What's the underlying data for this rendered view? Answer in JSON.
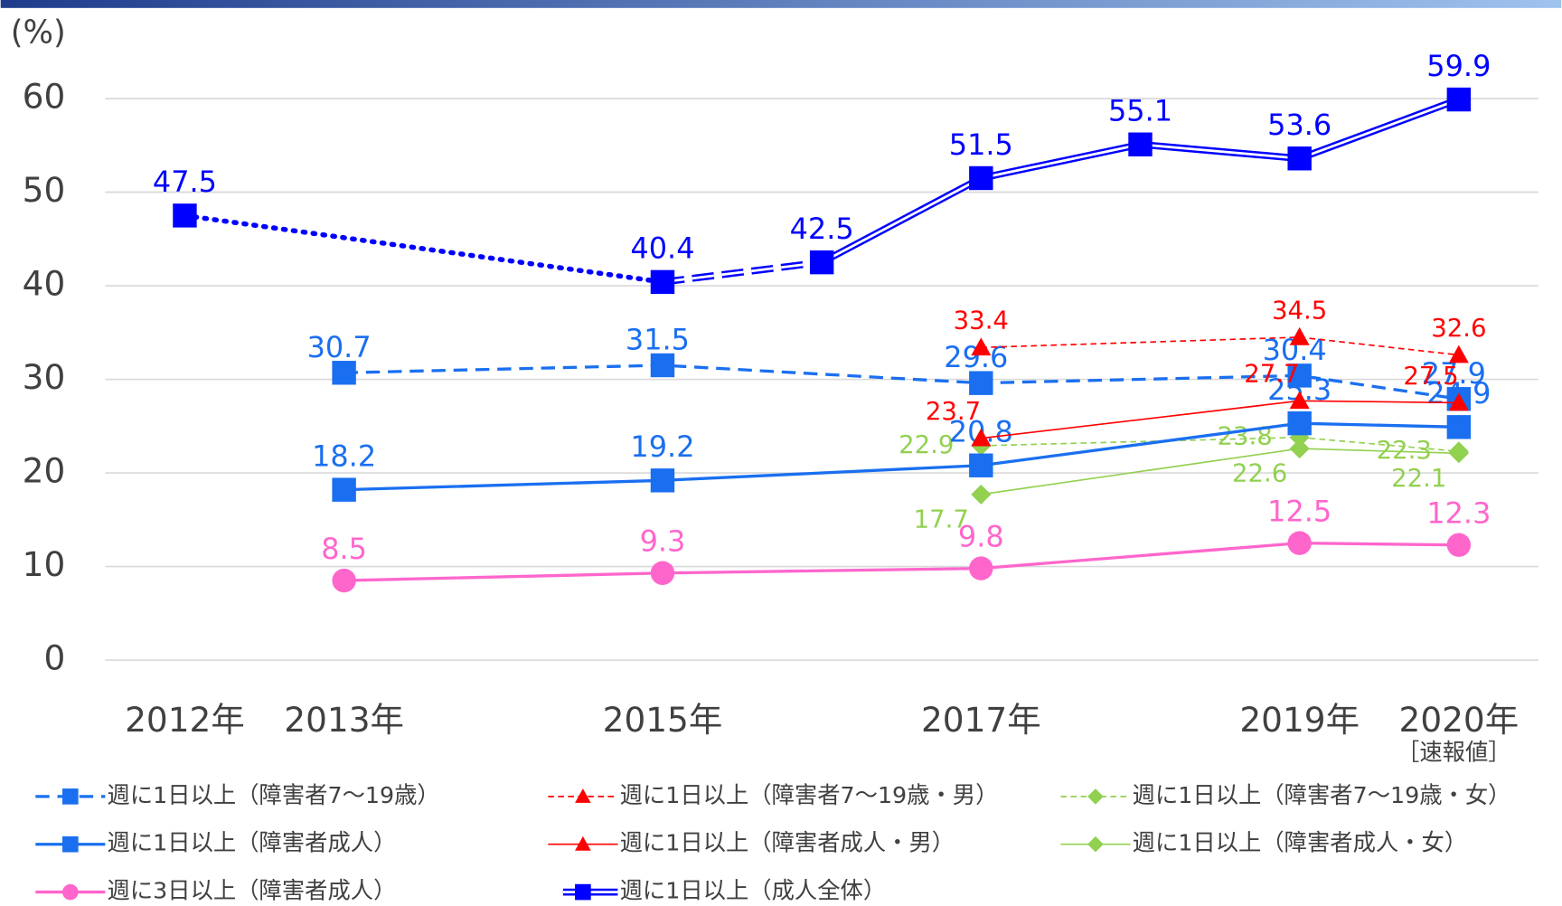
{
  "chart_data": {
    "type": "line",
    "ylabel": "(%)",
    "annotation": "［速報値］",
    "xlim": [
      2011.5,
      2020.5
    ],
    "xticks": [
      {
        "value": 2012,
        "label": "2012年"
      },
      {
        "value": 2013,
        "label": "2013年"
      },
      {
        "value": 2015,
        "label": "2015年"
      },
      {
        "value": 2017,
        "label": "2017年"
      },
      {
        "value": 2019,
        "label": "2019年"
      },
      {
        "value": 2020,
        "label": "2020年"
      }
    ],
    "ylim": [
      0,
      60
    ],
    "yticks": [
      0,
      10,
      20,
      30,
      40,
      50,
      60
    ],
    "grid": true,
    "legend": "bottom",
    "series": [
      {
        "name": "週に1日以上（障害者7～19歳）",
        "color": "#1a6ff0",
        "marker": "square",
        "dash": "dashed",
        "width": 3,
        "x": [
          2013,
          2015,
          2017,
          2019,
          2020
        ],
        "values": [
          30.7,
          31.5,
          29.6,
          30.4,
          27.9
        ]
      },
      {
        "name": "週に1日以上（障害者7～19歳・男）",
        "color": "#ff0000",
        "marker": "triangle",
        "dash": "dashed-thin",
        "width": 1.5,
        "x": [
          2017,
          2019,
          2020
        ],
        "values": [
          33.4,
          34.5,
          32.6
        ]
      },
      {
        "name": "週に1日以上（障害者7～19歳・女）",
        "color": "#92d050",
        "marker": "diamond",
        "dash": "dashed-thin",
        "width": 1.5,
        "x": [
          2017,
          2019,
          2020
        ],
        "values": [
          22.9,
          23.8,
          22.3
        ]
      },
      {
        "name": "週に1日以上（障害者成人）",
        "color": "#1a6ff0",
        "marker": "square",
        "dash": "solid",
        "width": 3,
        "x": [
          2013,
          2015,
          2017,
          2019,
          2020
        ],
        "values": [
          18.2,
          19.2,
          20.8,
          25.3,
          24.9
        ]
      },
      {
        "name": "週に1日以上（障害者成人・男）",
        "color": "#ff0000",
        "marker": "triangle",
        "dash": "solid",
        "width": 1.5,
        "x": [
          2017,
          2019,
          2020
        ],
        "values": [
          23.7,
          27.7,
          27.5
        ]
      },
      {
        "name": "週に1日以上（障害者成人・女）",
        "color": "#92d050",
        "marker": "diamond",
        "dash": "solid",
        "width": 1.5,
        "x": [
          2017,
          2019,
          2020
        ],
        "values": [
          17.7,
          22.6,
          22.1
        ]
      },
      {
        "name": "週に3日以上（障害者成人）",
        "color": "#ff66cc",
        "marker": "circle",
        "dash": "solid",
        "width": 3,
        "x": [
          2013,
          2015,
          2017,
          2019,
          2020
        ],
        "values": [
          8.5,
          9.3,
          9.8,
          12.5,
          12.3
        ]
      },
      {
        "name": "週に1日以上（成人全体）",
        "color": "#0000ff",
        "marker": "square",
        "dash": "double",
        "width": 3,
        "x": [
          2012,
          2015,
          2016,
          2017,
          2018,
          2019,
          2020
        ],
        "values": [
          47.5,
          40.4,
          42.5,
          51.5,
          55.1,
          53.6,
          59.9
        ],
        "segment_styles": [
          "dotted",
          "double-dashed",
          "double",
          "double",
          "double",
          "double"
        ]
      }
    ]
  }
}
